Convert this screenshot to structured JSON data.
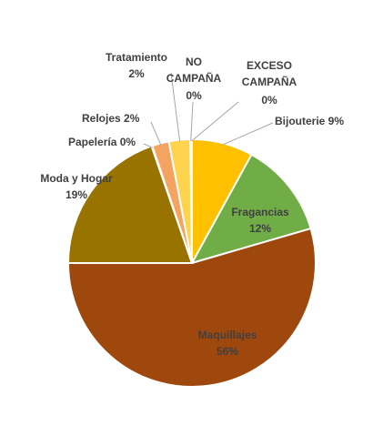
{
  "chart_data": {
    "type": "pie",
    "title": "",
    "legend": "none",
    "slices": [
      {
        "name": "Bijouterie",
        "value": 9,
        "label": "9%",
        "color": "#FFC000"
      },
      {
        "name": "Fragancias",
        "value": 12,
        "label": "12%",
        "color": "#70AD47"
      },
      {
        "name": "Maquillajes",
        "value": 56,
        "label": "56%",
        "color": "#9E480E"
      },
      {
        "name": "Moda y Hogar",
        "value": 19,
        "label": "19%",
        "color": "#997300"
      },
      {
        "name": "Papelería",
        "value": 0,
        "label": "0%",
        "color": "#5B9BD5"
      },
      {
        "name": "Relojes",
        "value": 2,
        "label": "2%",
        "color": "#F4A460"
      },
      {
        "name": "Tratamiento",
        "value": 2,
        "label": "2%",
        "color": "#FFD34D"
      },
      {
        "name": "NO CAMPAÑA",
        "value": 0,
        "label": "0%",
        "color": "#A5A5A5"
      },
      {
        "name": "EXCESO CAMPAÑA",
        "value": 0,
        "label": "0%",
        "color": "#ED7D31"
      }
    ]
  }
}
